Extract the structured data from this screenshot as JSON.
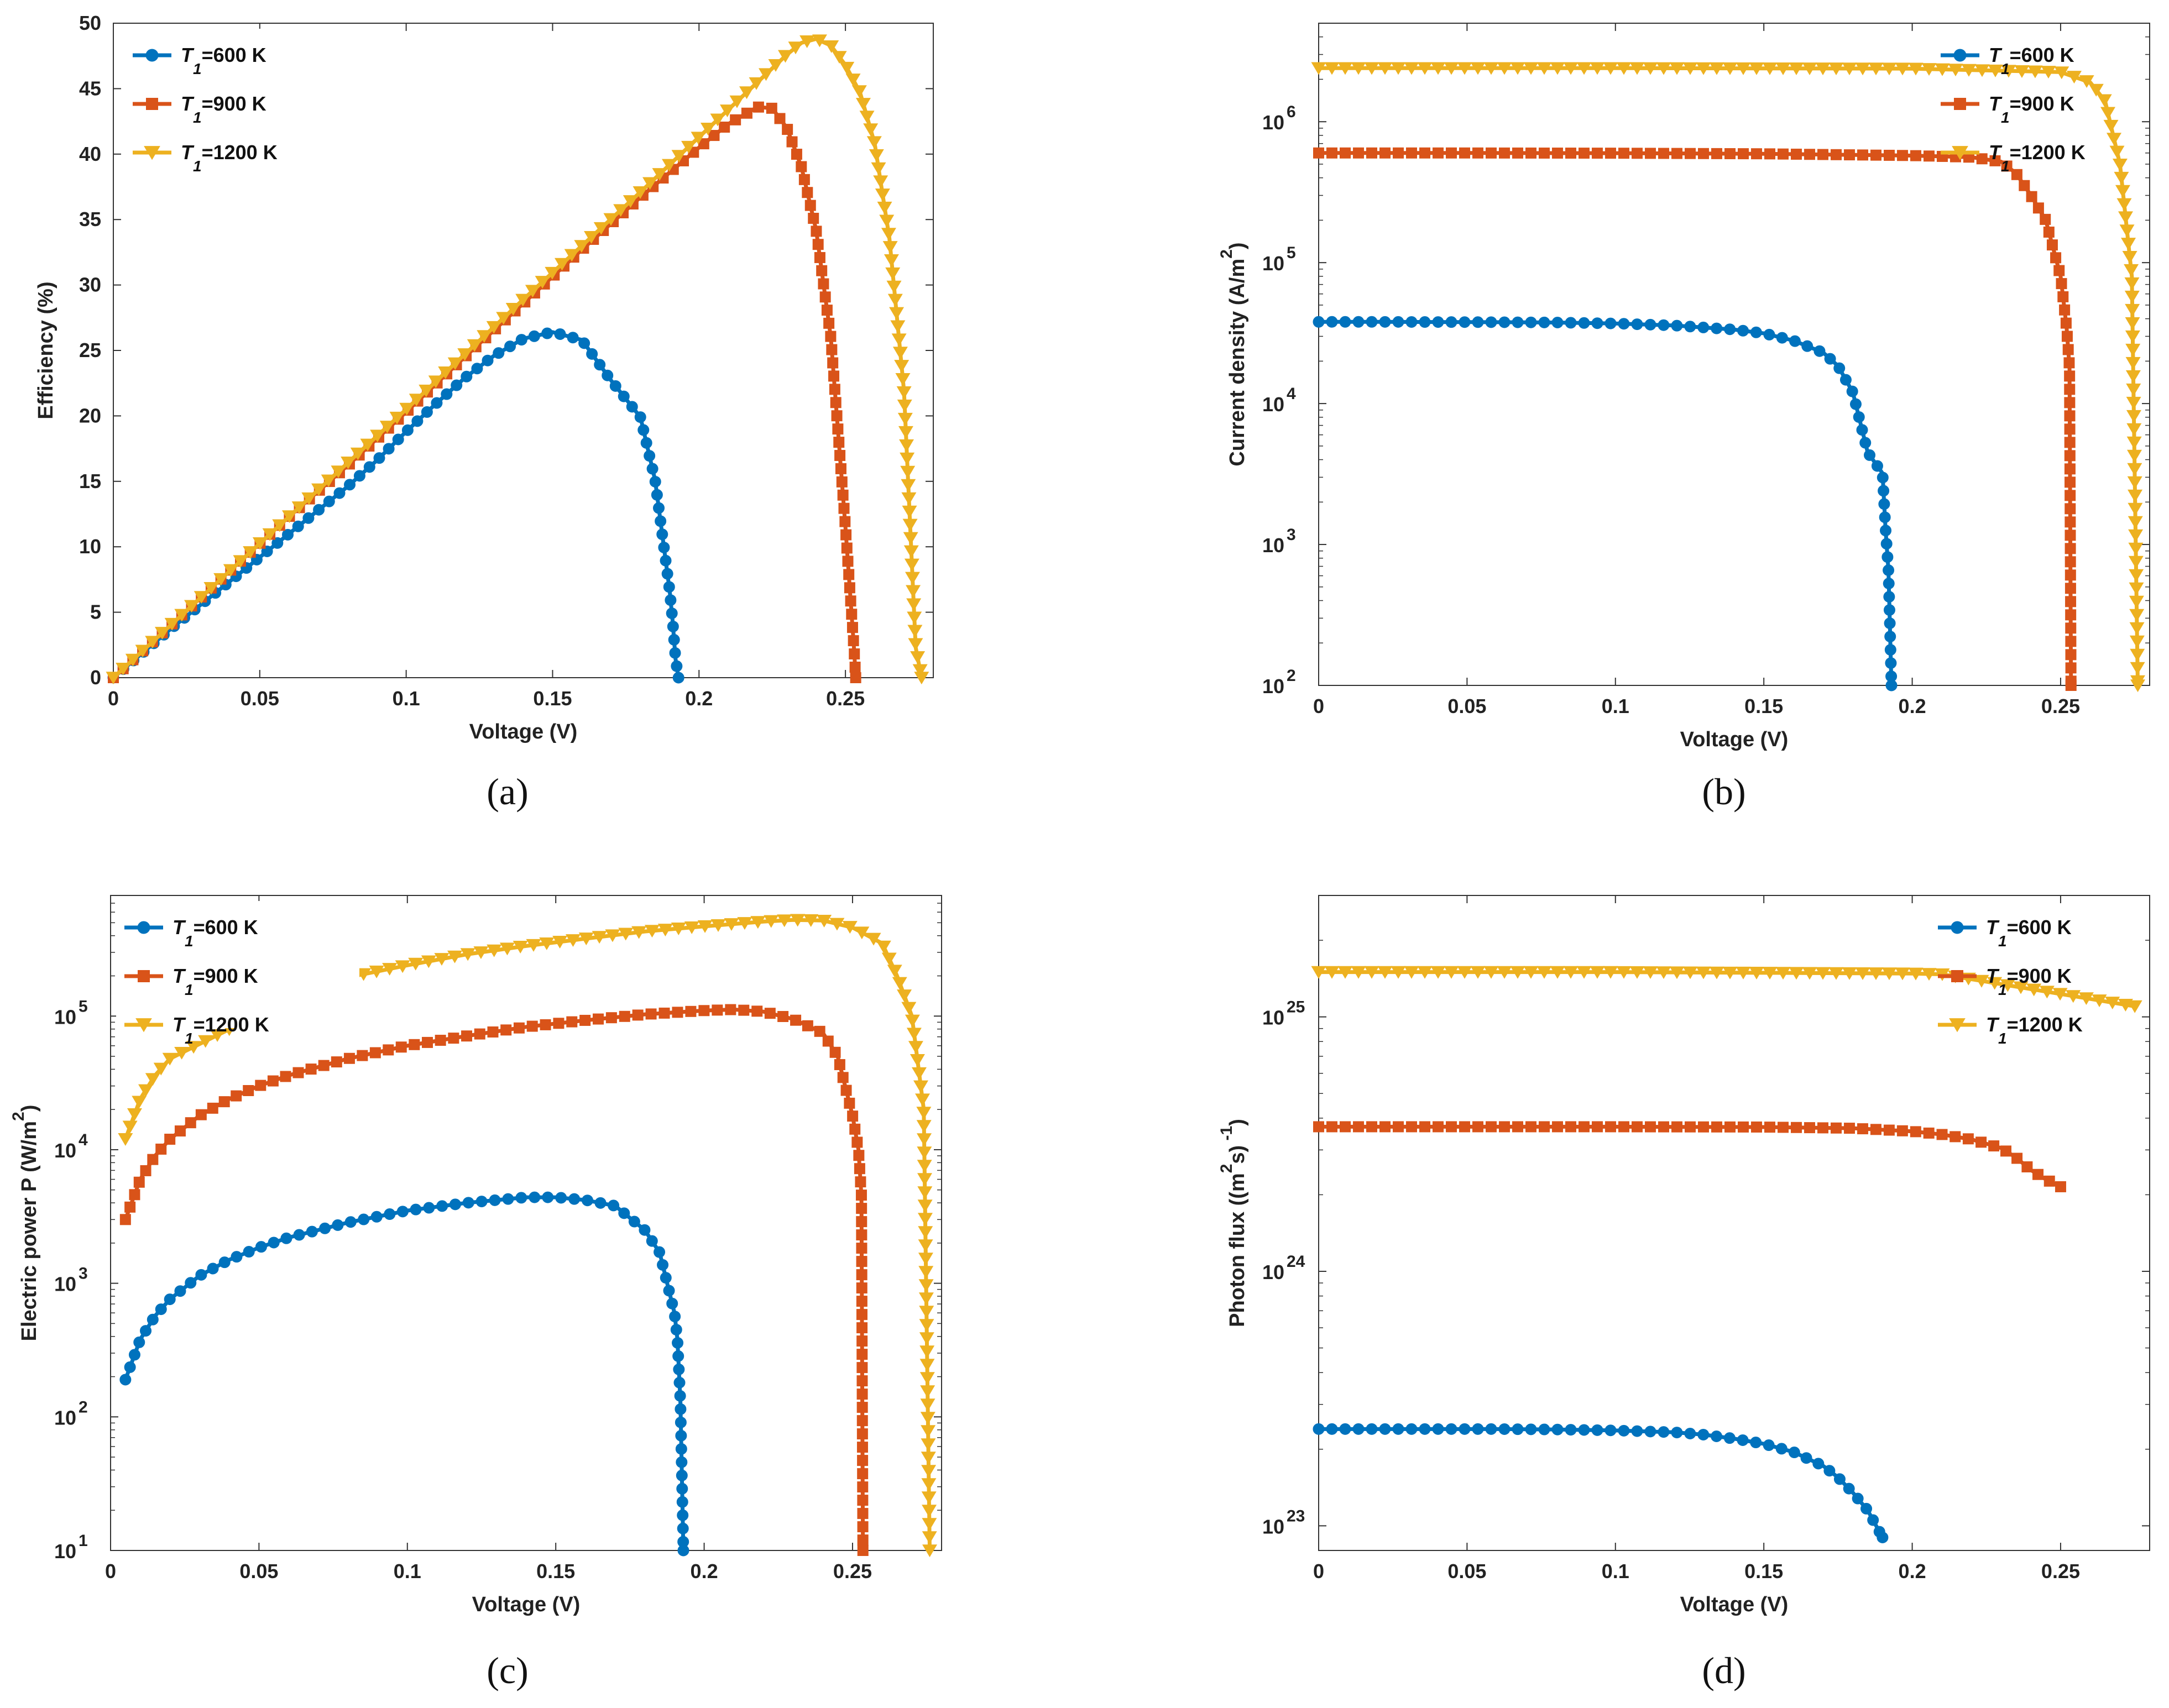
{
  "colors": {
    "s600": "#0072BD",
    "s900": "#D95319",
    "s1200": "#EDB120"
  },
  "legend": [
    {
      "name": "T1",
      "sym": "T",
      "sub": "1",
      "rest": "=600 K",
      "marker": "circle",
      "color": "#0072BD"
    },
    {
      "name": "T1",
      "sym": "T",
      "sub": "1",
      "rest": "=900 K",
      "marker": "square",
      "color": "#D95319"
    },
    {
      "name": "T1",
      "sym": "T",
      "sub": "1",
      "rest": "=1200 K",
      "marker": "triangle",
      "color": "#EDB120"
    }
  ],
  "chart_data": [
    {
      "id": "a",
      "caption": "(a)",
      "type": "line",
      "xlabel": "Voltage (V)",
      "ylabel": "Efficiency (%)",
      "xlim": [
        0,
        0.28
      ],
      "ylim": [
        0,
        50
      ],
      "yscale": "linear",
      "xticks": [
        0,
        0.05,
        0.1,
        0.15,
        0.2,
        0.25
      ],
      "xtick_labels": [
        "0",
        "0.05",
        "0.1",
        "0.15",
        "0.2",
        "0.25"
      ],
      "yticks": [
        0,
        5,
        10,
        15,
        20,
        25,
        30,
        35,
        40,
        45,
        50
      ],
      "ytick_labels": [
        "0",
        "5",
        "10",
        "15",
        "20",
        "25",
        "30",
        "35",
        "40",
        "45",
        "50"
      ],
      "legend_position": "top-left",
      "series": [
        {
          "name": "T1=600 K",
          "marker": "circle",
          "color": "#0072BD",
          "x": [
            0,
            0.01,
            0.02,
            0.03,
            0.04,
            0.05,
            0.06,
            0.07,
            0.08,
            0.09,
            0.1,
            0.11,
            0.12,
            0.13,
            0.14,
            0.15,
            0.16,
            0.17,
            0.18,
            0.185,
            0.19,
            0.191,
            0.192,
            0.193
          ],
          "y": [
            0,
            1.9,
            3.8,
            5.6,
            7.4,
            9.2,
            11.0,
            12.8,
            14.6,
            16.6,
            18.8,
            20.9,
            22.9,
            24.6,
            25.9,
            26.4,
            25.8,
            22.7,
            19.9,
            15.1,
            6.6,
            4.3,
            1.4,
            0
          ]
        },
        {
          "name": "T1=900 K",
          "marker": "square",
          "color": "#D95319",
          "x": [
            0,
            0.02,
            0.04,
            0.06,
            0.08,
            0.1,
            0.12,
            0.14,
            0.16,
            0.18,
            0.2,
            0.21,
            0.22,
            0.225,
            0.23,
            0.235,
            0.24,
            0.245,
            0.25,
            0.252,
            0.253,
            0.2535
          ],
          "y": [
            0,
            4.1,
            8.2,
            12.3,
            16.2,
            20.3,
            24.5,
            28.6,
            32.7,
            36.7,
            40.5,
            42.3,
            43.6,
            43.5,
            42.0,
            39.0,
            34.2,
            26.0,
            11.5,
            5.2,
            2.0,
            0
          ]
        },
        {
          "name": "T1=1200 K",
          "marker": "triangle",
          "color": "#EDB120",
          "x": [
            0,
            0.02,
            0.04,
            0.06,
            0.08,
            0.1,
            0.12,
            0.14,
            0.16,
            0.18,
            0.2,
            0.22,
            0.23,
            0.235,
            0.24,
            0.245,
            0.25,
            0.255,
            0.26,
            0.265,
            0.27,
            0.274,
            0.276
          ],
          "y": [
            0,
            4.1,
            8.2,
            12.3,
            16.4,
            20.5,
            24.7,
            28.9,
            33.0,
            37.1,
            41.3,
            45.5,
            47.6,
            48.5,
            48.8,
            48.3,
            46.8,
            44.7,
            40.8,
            33.6,
            21.9,
            2.3,
            0
          ]
        }
      ]
    },
    {
      "id": "b",
      "caption": "(b)",
      "type": "line",
      "xlabel": "Voltage (V)",
      "ylabel": "Current density (A/m",
      "ylabel_sup": "2",
      "ylabel_close": ")",
      "xlim": [
        0,
        0.28
      ],
      "ylim": [
        100,
        5000000
      ],
      "yscale": "log",
      "xticks": [
        0,
        0.05,
        0.1,
        0.15,
        0.2,
        0.25
      ],
      "xtick_labels": [
        "0",
        "0.05",
        "0.1",
        "0.15",
        "0.2",
        "0.25"
      ],
      "yticks": [
        100,
        1000,
        10000,
        100000,
        1000000
      ],
      "ytick_base": "10",
      "ytick_exp": [
        "2",
        "3",
        "4",
        "5",
        "6"
      ],
      "legend_position": "top-right",
      "series": [
        {
          "name": "T1=600 K",
          "marker": "circle",
          "color": "#0072BD",
          "x": [
            0,
            0.02,
            0.04,
            0.06,
            0.08,
            0.1,
            0.12,
            0.14,
            0.15,
            0.16,
            0.17,
            0.175,
            0.18,
            0.185,
            0.19,
            0.191,
            0.192,
            0.193
          ],
          "y": [
            38000,
            38000,
            37900,
            37800,
            37600,
            37000,
            35800,
            33500,
            31500,
            28000,
            23000,
            18500,
            12000,
            4500,
            3200,
            1300,
            650,
            100
          ]
        },
        {
          "name": "T1=900 K",
          "marker": "square",
          "color": "#D95319",
          "x": [
            0,
            0.05,
            0.1,
            0.15,
            0.2,
            0.22,
            0.23,
            0.235,
            0.24,
            0.245,
            0.25,
            0.252,
            0.253,
            0.2535
          ],
          "y": [
            600000,
            600000,
            598000,
            592000,
            575000,
            560000,
            520000,
            430000,
            300000,
            200000,
            80000,
            35000,
            18000,
            100
          ]
        },
        {
          "name": "T1=1200 K",
          "marker": "triangle",
          "color": "#EDB120",
          "x": [
            0,
            0.05,
            0.1,
            0.15,
            0.2,
            0.25,
            0.26,
            0.265,
            0.27,
            0.274,
            0.276
          ],
          "y": [
            2400000,
            2400000,
            2400000,
            2390000,
            2380000,
            2250000,
            1900000,
            1400000,
            500000,
            80000,
            100
          ]
        }
      ]
    },
    {
      "id": "c",
      "caption": "(c)",
      "type": "line",
      "xlabel": "Voltage (V)",
      "ylabel": "Electric power P (W/m",
      "ylabel_sup": "2",
      "ylabel_close": ")",
      "xlim": [
        0,
        0.28
      ],
      "ylim": [
        10,
        800000
      ],
      "yscale": "log",
      "xticks": [
        0,
        0.05,
        0.1,
        0.15,
        0.2,
        0.25
      ],
      "xtick_labels": [
        "0",
        "0.05",
        "0.1",
        "0.15",
        "0.2",
        "0.25"
      ],
      "yticks": [
        10,
        100,
        1000,
        10000,
        100000
      ],
      "ytick_base": "10",
      "ytick_exp": [
        "1",
        "2",
        "3",
        "4",
        "5"
      ],
      "legend_position": "top-left",
      "series": [
        {
          "name": "T1=600 K",
          "marker": "circle",
          "color": "#0072BD",
          "x": [
            0.005,
            0.01,
            0.015,
            0.02,
            0.03,
            0.04,
            0.05,
            0.06,
            0.08,
            0.1,
            0.12,
            0.14,
            0.15,
            0.16,
            0.17,
            0.18,
            0.185,
            0.19,
            0.191,
            0.192,
            0.193
          ],
          "y": [
            190,
            380,
            570,
            760,
            1140,
            1500,
            1850,
            2200,
            2850,
            3500,
            4000,
            4400,
            4400,
            4200,
            3800,
            2500,
            1700,
            600,
            380,
            130,
            10
          ]
        },
        {
          "name": "T1=900 K",
          "marker": "square",
          "color": "#D95319",
          "x": [
            0.005,
            0.01,
            0.015,
            0.02,
            0.03,
            0.04,
            0.05,
            0.06,
            0.08,
            0.1,
            0.12,
            0.14,
            0.16,
            0.18,
            0.2,
            0.21,
            0.22,
            0.23,
            0.24,
            0.245,
            0.25,
            0.252,
            0.253,
            0.2535
          ],
          "y": [
            3000,
            6000,
            9000,
            12000,
            18000,
            24000,
            30000,
            36000,
            48000,
            60000,
            71000,
            83000,
            93000,
            103000,
            110000,
            112000,
            108000,
            95000,
            75000,
            50000,
            18000,
            10000,
            4500,
            10
          ]
        },
        {
          "name": "T1=1200 K",
          "marker": "triangle",
          "color": "#EDB120",
          "x": [
            0.005,
            0.01,
            0.015,
            0.02,
            0.07,
            0.08,
            0.1,
            0.12,
            0.14,
            0.16,
            0.18,
            0.2,
            0.22,
            0.23,
            0.24,
            0.25,
            0.26,
            0.265,
            0.27,
            0.274,
            0.276
          ],
          "y": [
            12000,
            24000,
            36000,
            48000,
            170000,
            195000,
            240000,
            290000,
            335000,
            380000,
            430000,
            470000,
            510000,
            525000,
            520000,
            460000,
            350000,
            200000,
            100000,
            20000,
            10
          ]
        }
      ]
    },
    {
      "id": "d",
      "caption": "(d)",
      "type": "line",
      "xlabel": "Voltage (V)",
      "ylabel": "Photon flux ((m",
      "ylabel_sup": "2",
      "ylabel_close": "s)",
      "ylabel_sup2": "-1",
      "ylabel_close2": ")",
      "xlim": [
        0,
        0.28
      ],
      "ylim": [
        8e+22,
        3e+25
      ],
      "yscale": "log",
      "xticks": [
        0,
        0.05,
        0.1,
        0.15,
        0.2,
        0.25
      ],
      "xtick_labels": [
        "0",
        "0.05",
        "0.1",
        "0.15",
        "0.2",
        "0.25"
      ],
      "yticks": [
        1e+23,
        1e+24,
        1e+25
      ],
      "ytick_base": "10",
      "ytick_exp": [
        "23",
        "24",
        "25"
      ],
      "legend_position": "top-right",
      "series": [
        {
          "name": "T1=600 K",
          "marker": "circle",
          "color": "#0072BD",
          "x": [
            0,
            0.02,
            0.04,
            0.06,
            0.08,
            0.1,
            0.12,
            0.13,
            0.14,
            0.15,
            0.16,
            0.17,
            0.175,
            0.18,
            0.185,
            0.19
          ],
          "y": [
            2.4e+23,
            2.4e+23,
            2.4e+23,
            2.4e+23,
            2.39e+23,
            2.37e+23,
            2.33e+23,
            2.28e+23,
            2.2e+23,
            2.1e+23,
            1.95e+23,
            1.72e+23,
            1.55e+23,
            1.35e+23,
            1.15e+23,
            9e+22
          ]
        },
        {
          "name": "T1=900 K",
          "marker": "square",
          "color": "#D95319",
          "x": [
            0,
            0.05,
            0.1,
            0.15,
            0.18,
            0.2,
            0.21,
            0.22,
            0.23,
            0.235,
            0.24,
            0.245,
            0.25
          ],
          "y": [
            3.7e+24,
            3.7e+24,
            3.7e+24,
            3.69e+24,
            3.65e+24,
            3.55e+24,
            3.45e+24,
            3.3e+24,
            3.05e+24,
            2.8e+24,
            2.5e+24,
            2.3e+24,
            2.15e+24
          ]
        },
        {
          "name": "T1=1200 K",
          "marker": "triangle",
          "color": "#EDB120",
          "x": [
            0,
            0.05,
            0.1,
            0.15,
            0.2,
            0.21,
            0.275
          ],
          "y": [
            1.5e+25,
            1.5e+25,
            1.5e+25,
            1.49e+25,
            1.48e+25,
            1.47e+25,
            1.1e+25
          ]
        }
      ]
    }
  ]
}
